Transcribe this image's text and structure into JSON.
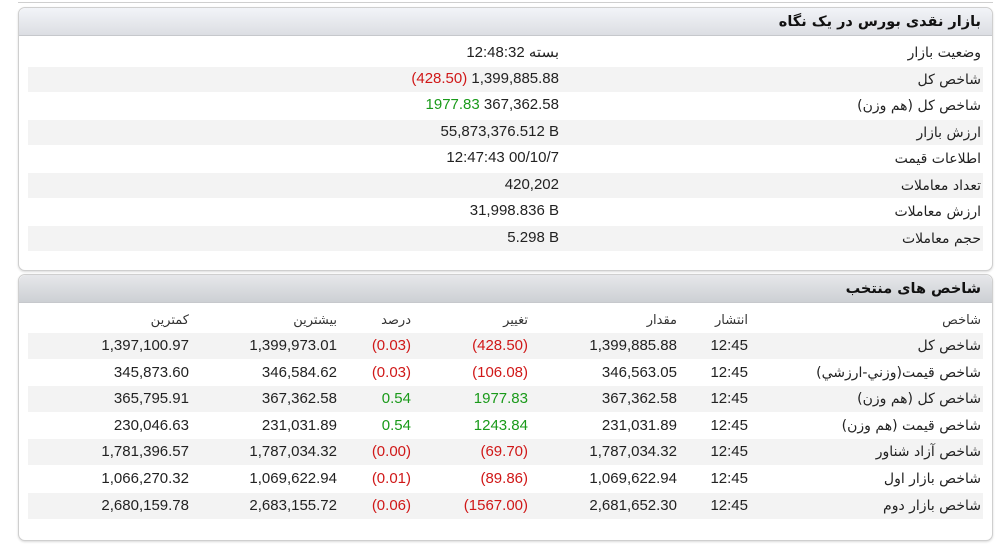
{
  "market_summary": {
    "title": "بازار نقدی بورس در یک نگاه",
    "rows": [
      {
        "label": "وضعیت بازار",
        "value": "12:48:32 بسته",
        "change": "",
        "change_type": ""
      },
      {
        "label": "شاخص کل",
        "value": "1,399,885.88",
        "change": "(428.50)",
        "change_type": "neg"
      },
      {
        "label": "شاخص کل (هم وزن)",
        "value": "367,362.58",
        "change": "1977.83",
        "change_type": "pos"
      },
      {
        "label": "ارزش بازار",
        "value": "55,873,376.512 B",
        "change": "",
        "change_type": ""
      },
      {
        "label": "اطلاعات قیمت",
        "value": "12:47:43 00/10/7",
        "change": "",
        "change_type": ""
      },
      {
        "label": "تعداد معاملات",
        "value": "420,202",
        "change": "",
        "change_type": ""
      },
      {
        "label": "ارزش معاملات",
        "value": "31,998.836 B",
        "change": "",
        "change_type": ""
      },
      {
        "label": "حجم معاملات",
        "value": "5.298 B",
        "change": "",
        "change_type": ""
      }
    ]
  },
  "selected_indices": {
    "title": "شاخص های منتخب",
    "columns": {
      "name": "شاخص",
      "published": "انتشار",
      "value": "مقدار",
      "change": "تغییر",
      "percent": "درصد",
      "high": "بیشترین",
      "low": "کمترین"
    },
    "rows": [
      {
        "name": "شاخص کل",
        "published": "12:45",
        "value": "1,399,885.88",
        "change": "(428.50)",
        "percent": "(0.03)",
        "high": "1,399,973.01",
        "low": "1,397,100.97",
        "trend": "neg"
      },
      {
        "name": "شاخص قیمت(وزني-ارزشي)",
        "published": "12:45",
        "value": "346,563.05",
        "change": "(106.08)",
        "percent": "(0.03)",
        "high": "346,584.62",
        "low": "345,873.60",
        "trend": "neg"
      },
      {
        "name": "شاخص کل (هم وزن)",
        "published": "12:45",
        "value": "367,362.58",
        "change": "1977.83",
        "percent": "0.54",
        "high": "367,362.58",
        "low": "365,795.91",
        "trend": "pos"
      },
      {
        "name": "شاخص قیمت (هم وزن)",
        "published": "12:45",
        "value": "231,031.89",
        "change": "1243.84",
        "percent": "0.54",
        "high": "231,031.89",
        "low": "230,046.63",
        "trend": "pos"
      },
      {
        "name": "شاخص آزاد شناور",
        "published": "12:45",
        "value": "1,787,034.32",
        "change": "(69.70)",
        "percent": "(0.00)",
        "high": "1,787,034.32",
        "low": "1,781,396.57",
        "trend": "neg"
      },
      {
        "name": "شاخص بازار اول",
        "published": "12:45",
        "value": "1,069,622.94",
        "change": "(89.86)",
        "percent": "(0.01)",
        "high": "1,069,622.94",
        "low": "1,066,270.32",
        "trend": "neg"
      },
      {
        "name": "شاخص بازار دوم",
        "published": "12:45",
        "value": "2,681,652.30",
        "change": "(1567.00)",
        "percent": "(0.06)",
        "high": "2,683,155.72",
        "low": "2,680,159.78",
        "trend": "neg"
      }
    ]
  },
  "colors": {
    "negative": "#d01818",
    "positive": "#1a9a1a",
    "header_bg": "#dcdee3",
    "row_alt": "#f3f3f3"
  }
}
